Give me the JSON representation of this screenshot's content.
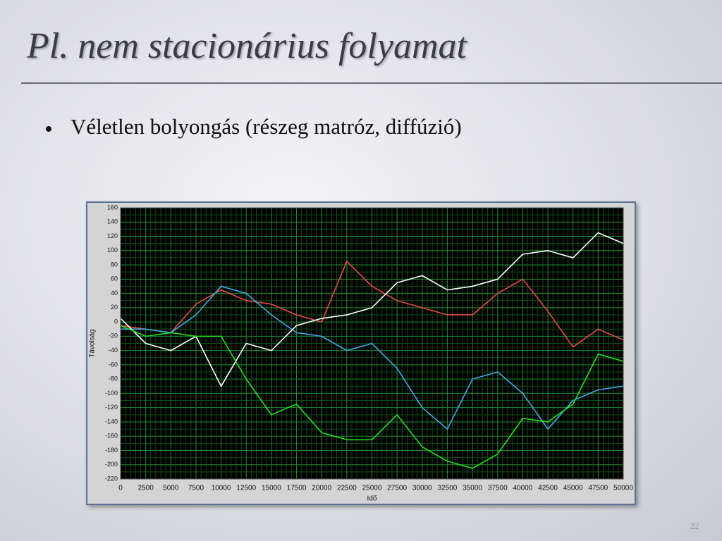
{
  "slide": {
    "title": "Pl. nem stacionárius folyamat",
    "bullet": "Véletlen bolyongás (részeg matróz, diffúzió)",
    "page_number": "22"
  },
  "chart_data": {
    "type": "line",
    "x_label": "Idő",
    "y_label": "Távolság",
    "x": [
      0,
      2500,
      5000,
      7500,
      10000,
      12500,
      15000,
      17500,
      20000,
      22500,
      25000,
      27500,
      30000,
      32500,
      35000,
      37500,
      40000,
      42500,
      45000,
      47500,
      50000
    ],
    "series": [
      {
        "color": "#e84a4a",
        "values": [
          -5,
          -10,
          -15,
          25,
          45,
          30,
          25,
          10,
          0,
          85,
          50,
          30,
          20,
          10,
          10,
          40,
          60,
          15,
          -35,
          -10,
          -25
        ]
      },
      {
        "color": "#3fa9e8",
        "values": [
          -10,
          -10,
          -15,
          10,
          50,
          40,
          10,
          -15,
          -20,
          -40,
          -30,
          -65,
          -120,
          -150,
          -80,
          -70,
          -100,
          -150,
          -110,
          -95,
          -90
        ]
      },
      {
        "color": "#ffffff",
        "values": [
          5,
          -30,
          -40,
          -20,
          -90,
          -30,
          -40,
          -5,
          5,
          10,
          20,
          55,
          65,
          45,
          50,
          60,
          95,
          100,
          90,
          125,
          110
        ]
      },
      {
        "color": "#22e01e",
        "values": [
          -5,
          -20,
          -15,
          -20,
          -20,
          -80,
          -130,
          -115,
          -155,
          -165,
          -165,
          -130,
          -175,
          -195,
          -205,
          -185,
          -135,
          -140,
          -115,
          -45,
          -55
        ]
      }
    ],
    "xlim": [
      0,
      50000
    ],
    "xticks": [
      0,
      2500,
      5000,
      7500,
      10000,
      12500,
      15000,
      17500,
      20000,
      22500,
      25000,
      27500,
      30000,
      32500,
      35000,
      37500,
      40000,
      42500,
      45000,
      47500,
      50000
    ],
    "ylim": [
      -220,
      160
    ],
    "yticks": [
      -220,
      -200,
      -180,
      -160,
      -140,
      -120,
      -100,
      -80,
      -60,
      -40,
      -20,
      0,
      20,
      40,
      60,
      80,
      100,
      120,
      140,
      160
    ],
    "grid": true
  }
}
